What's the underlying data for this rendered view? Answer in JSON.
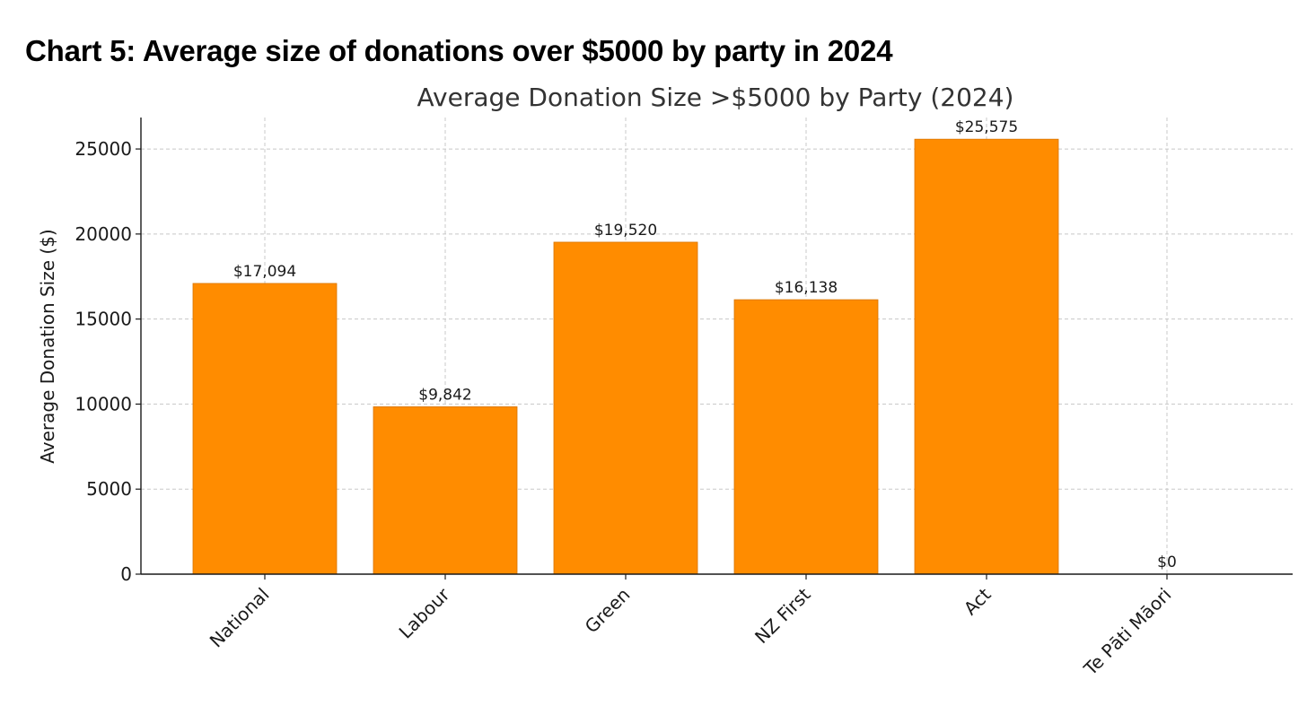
{
  "page": {
    "heading": "Chart 5: Average size of donations over $5000 by party in 2024"
  },
  "chart_data": {
    "type": "bar",
    "title": "Average Donation Size >$5000 by Party (2024)",
    "xlabel": "",
    "ylabel": "Average Donation Size ($)",
    "categories": [
      "National",
      "Labour",
      "Green",
      "NZ First",
      "Act",
      "Te Pāti Māori"
    ],
    "values": [
      17094,
      9842,
      19520,
      16138,
      25575,
      0
    ],
    "data_labels": [
      "$17,094",
      "$9,842",
      "$19,520",
      "$16,138",
      "$25,575",
      "$0"
    ],
    "yticks": [
      0,
      5000,
      10000,
      15000,
      20000,
      25000
    ],
    "ylim": [
      0,
      26850
    ],
    "grid": true,
    "bar_color": "#ff8c00",
    "bar_edge_color": "#d87400"
  }
}
